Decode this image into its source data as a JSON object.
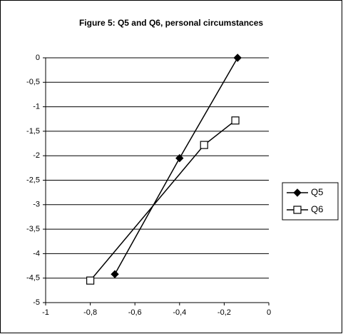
{
  "chart_data": {
    "type": "line",
    "title": "Figure 5: Q5 and Q6, personal circumstances",
    "xlim": [
      -1,
      0
    ],
    "xticks": [
      -1,
      {
        "value": -0.8,
        "label": "-0,8"
      },
      {
        "value": -0.6,
        "label": "-0,6"
      },
      {
        "value": -0.4,
        "label": "-0,4"
      },
      {
        "value": -0.2,
        "label": "-0,2"
      },
      0
    ],
    "ylim": [
      -5,
      0
    ],
    "yticks": [
      0,
      {
        "value": -0.5,
        "label": "-0,5"
      },
      -1,
      {
        "value": -1.5,
        "label": "-1,5"
      },
      -2,
      {
        "value": -2.5,
        "label": "-2,5"
      },
      -3,
      {
        "value": -3.5,
        "label": "-3,5"
      },
      -4,
      {
        "value": -4.5,
        "label": "-4,5"
      },
      -5
    ],
    "grid": true,
    "legend": "right",
    "series": [
      {
        "name": "Q5",
        "color": "#000000",
        "marker": "diamond",
        "x": [
          -0.69,
          -0.4,
          -0.14
        ],
        "values": [
          -4.42,
          -2.05,
          0
        ]
      },
      {
        "name": "Q6",
        "color": "#000000",
        "marker": "square",
        "x": [
          -0.8,
          -0.29,
          -0.15
        ],
        "values": [
          -4.55,
          -1.78,
          -1.28
        ]
      }
    ]
  }
}
